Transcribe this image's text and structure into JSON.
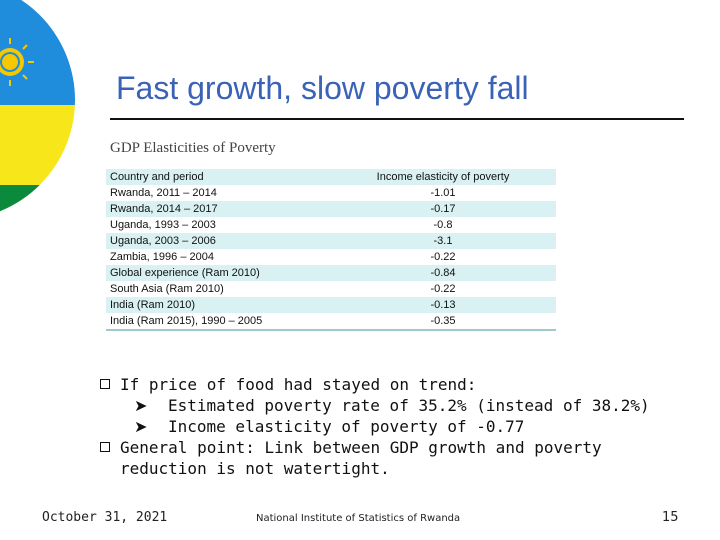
{
  "slide": {
    "title": "Fast growth, slow poverty fall"
  },
  "figure": {
    "title": "GDP Elasticities of Poverty",
    "table": {
      "headers": [
        "Country and period",
        "Income elasticity of poverty"
      ],
      "rows": [
        [
          "Rwanda, 2011 – 2014",
          "-1.01"
        ],
        [
          "Rwanda, 2014 – 2017",
          "-0.17"
        ],
        [
          "Uganda, 1993 – 2003",
          "-0.8"
        ],
        [
          "Uganda, 2003 – 2006",
          "-3.1"
        ],
        [
          "Zambia, 1996 – 2004",
          "-0.22"
        ],
        [
          "Global experience (Ram 2010)",
          "-0.84"
        ],
        [
          "South Asia (Ram 2010)",
          "-0.22"
        ],
        [
          "India (Ram 2010)",
          "-0.13"
        ],
        [
          "India (Ram 2015), 1990 – 2005",
          "-0.35"
        ]
      ]
    }
  },
  "bullets": {
    "b1": "If price of food had stayed on trend:",
    "b1_sub1": "Estimated poverty rate of 35.2% (instead of 38.2%)",
    "b1_sub2": "Income elasticity of poverty of -0.77",
    "b2_line1": "General point: Link between GDP growth and poverty",
    "b2_line2": "reduction is not watertight."
  },
  "footer": {
    "date": "October 31, 2021",
    "organization": "National Institute of Statistics of Rwanda",
    "page": "15"
  },
  "colors": {
    "title": "#3a63b8",
    "row_shade": "#d9f1f2",
    "flag_blue": "#1f8ddc",
    "flag_yellow": "#f6e61a",
    "flag_green": "#0a8a3a",
    "flag_sun": "#f5c800"
  },
  "icons": {
    "bullet": "square-bullet-icon",
    "sub_bullet": "arrow-bullet-icon",
    "flag": "rwanda-flag-circle-icon"
  }
}
